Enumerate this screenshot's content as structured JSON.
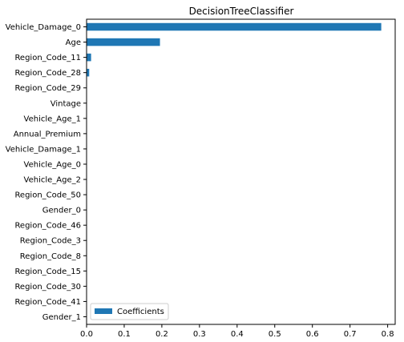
{
  "chart_data": {
    "type": "bar",
    "orientation": "horizontal",
    "title": "DecisionTreeClassifier",
    "xlabel": "",
    "ylabel": "",
    "xlim": [
      0.0,
      0.82
    ],
    "xticks": [
      0.0,
      0.1,
      0.2,
      0.3,
      0.4,
      0.5,
      0.6,
      0.7,
      0.8
    ],
    "xtick_labels": [
      "0.0",
      "0.1",
      "0.2",
      "0.3",
      "0.4",
      "0.5",
      "0.6",
      "0.7",
      "0.8"
    ],
    "grid": false,
    "legend_position": "bottom-left",
    "color": "#1f77b4",
    "categories": [
      "Vehicle_Damage_0",
      "Age",
      "Region_Code_11",
      "Region_Code_28",
      "Region_Code_29",
      "Vintage",
      "Vehicle_Age_1",
      "Annual_Premium",
      "Vehicle_Damage_1",
      "Vehicle_Age_0",
      "Vehicle_Age_2",
      "Region_Code_50",
      "Gender_0",
      "Region_Code_46",
      "Region_Code_3",
      "Region_Code_8",
      "Region_Code_15",
      "Region_Code_30",
      "Region_Code_41",
      "Gender_1"
    ],
    "series": [
      {
        "name": "Coefficients",
        "values": [
          0.783,
          0.195,
          0.012,
          0.007,
          0.0,
          0.0,
          0.0,
          0.0,
          0.0,
          0.0,
          0.0,
          0.0,
          0.0,
          0.0,
          0.0,
          0.0,
          0.0,
          0.0,
          0.0,
          0.0
        ]
      }
    ]
  }
}
